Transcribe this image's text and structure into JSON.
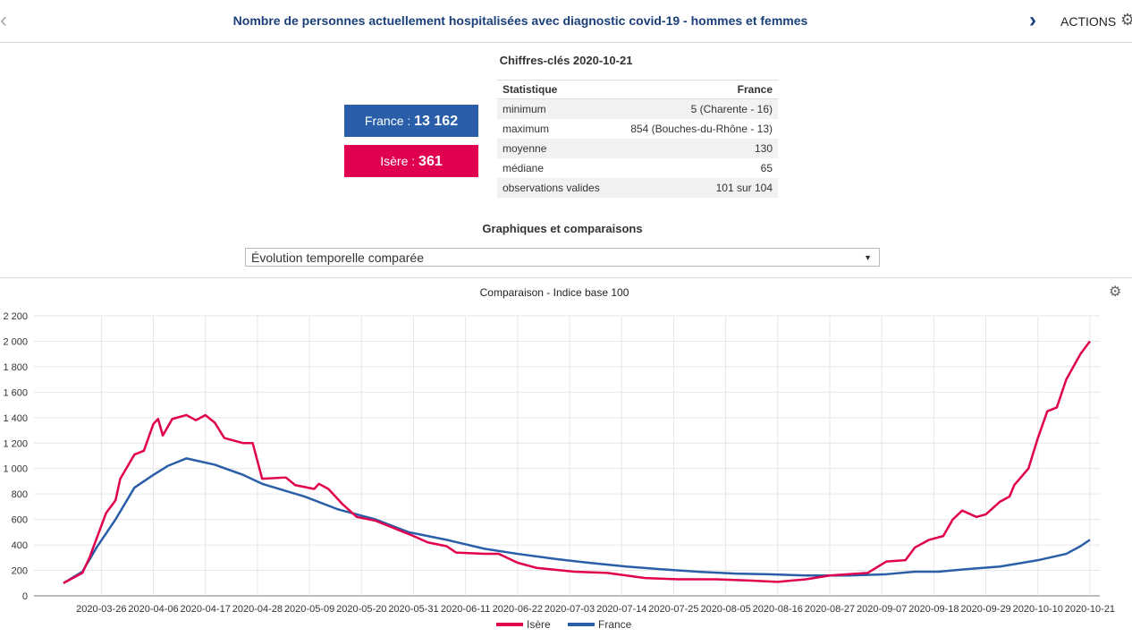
{
  "header": {
    "title": "Nombre de personnes actuellement hospitalisées avec diagnostic covid-19 - hommes et femmes",
    "prev_icon": "chevron-left",
    "next_icon": "chevron-right",
    "actions_label": "ACTIONS",
    "actions_icon": "gear"
  },
  "key_figures": {
    "title": "Chiffres-clés 2020-10-21",
    "france": {
      "label": "France : ",
      "value": "13 162",
      "color": "#2a5ea8"
    },
    "isere": {
      "label": "Isère : ",
      "value": "361",
      "color": "#e0004f"
    },
    "table": {
      "headers": [
        "Statistique",
        "France"
      ],
      "rows": [
        [
          "minimum",
          "5 (Charente - 16)"
        ],
        [
          "maximum",
          "854 (Bouches-du-Rhône - 13)"
        ],
        [
          "moyenne",
          "130"
        ],
        [
          "médiane",
          "65"
        ],
        [
          "observations valides",
          "101 sur 104"
        ]
      ]
    }
  },
  "graphs": {
    "title": "Graphiques et comparaisons",
    "select_value": "Évolution temporelle comparée"
  },
  "chart_data": {
    "type": "line",
    "title": "Comparaison - Indice base 100",
    "start_date": "2020-03-18",
    "ylim": [
      0,
      2200
    ],
    "yticks": [
      "0",
      "200",
      "400",
      "600",
      "800",
      "1 000",
      "1 200",
      "1 400",
      "1 600",
      "1 800",
      "2 000",
      "2 200"
    ],
    "xtick_labels": [
      "2020-03-26",
      "2020-04-06",
      "2020-04-17",
      "2020-04-28",
      "2020-05-09",
      "2020-05-20",
      "2020-05-31",
      "2020-06-11",
      "2020-06-22",
      "2020-07-03",
      "2020-07-14",
      "2020-07-25",
      "2020-08-05",
      "2020-08-16",
      "2020-08-27",
      "2020-09-07",
      "2020-09-18",
      "2020-09-29",
      "2020-10-10",
      "2020-10-21"
    ],
    "xtick_days": [
      8,
      19,
      30,
      41,
      52,
      63,
      74,
      85,
      96,
      107,
      118,
      129,
      140,
      151,
      162,
      173,
      184,
      195,
      206,
      217
    ],
    "x_unit": "days since start_date",
    "series": [
      {
        "name": "Isère",
        "color": "#e0004f",
        "points": [
          [
            0,
            100
          ],
          [
            4,
            180
          ],
          [
            5.5,
            300
          ],
          [
            7,
            450
          ],
          [
            9,
            650
          ],
          [
            11,
            750
          ],
          [
            12,
            920
          ],
          [
            15,
            1110
          ],
          [
            17,
            1140
          ],
          [
            19,
            1350
          ],
          [
            20,
            1390
          ],
          [
            21,
            1260
          ],
          [
            23,
            1390
          ],
          [
            26,
            1420
          ],
          [
            28,
            1380
          ],
          [
            30,
            1420
          ],
          [
            32,
            1360
          ],
          [
            34,
            1240
          ],
          [
            38,
            1200
          ],
          [
            40,
            1200
          ],
          [
            42,
            920
          ],
          [
            47,
            930
          ],
          [
            49,
            870
          ],
          [
            53,
            840
          ],
          [
            54,
            880
          ],
          [
            56,
            840
          ],
          [
            59,
            720
          ],
          [
            62,
            620
          ],
          [
            66,
            590
          ],
          [
            70,
            530
          ],
          [
            74,
            470
          ],
          [
            77,
            420
          ],
          [
            81,
            390
          ],
          [
            83,
            340
          ],
          [
            89,
            330
          ],
          [
            92,
            330
          ],
          [
            96,
            260
          ],
          [
            100,
            220
          ],
          [
            108,
            190
          ],
          [
            115,
            180
          ],
          [
            123,
            140
          ],
          [
            130,
            130
          ],
          [
            138,
            130
          ],
          [
            145,
            120
          ],
          [
            151,
            110
          ],
          [
            157,
            130
          ],
          [
            162,
            160
          ],
          [
            170,
            180
          ],
          [
            174,
            270
          ],
          [
            178,
            280
          ],
          [
            180,
            380
          ],
          [
            183,
            440
          ],
          [
            186,
            470
          ],
          [
            188,
            600
          ],
          [
            190,
            670
          ],
          [
            193,
            620
          ],
          [
            195,
            640
          ],
          [
            198,
            740
          ],
          [
            200,
            780
          ],
          [
            201,
            870
          ],
          [
            204,
            1000
          ],
          [
            206,
            1240
          ],
          [
            208,
            1450
          ],
          [
            210,
            1480
          ],
          [
            212,
            1700
          ],
          [
            215,
            1900
          ],
          [
            217,
            2000
          ]
        ]
      },
      {
        "name": "France",
        "color": "#2a5ea8",
        "points": [
          [
            0,
            100
          ],
          [
            4,
            190
          ],
          [
            7,
            380
          ],
          [
            11,
            600
          ],
          [
            15,
            850
          ],
          [
            19,
            950
          ],
          [
            22,
            1020
          ],
          [
            26,
            1080
          ],
          [
            32,
            1030
          ],
          [
            38,
            950
          ],
          [
            42,
            880
          ],
          [
            51,
            780
          ],
          [
            58,
            680
          ],
          [
            66,
            600
          ],
          [
            73,
            500
          ],
          [
            81,
            440
          ],
          [
            89,
            370
          ],
          [
            96,
            330
          ],
          [
            104,
            290
          ],
          [
            111,
            260
          ],
          [
            119,
            230
          ],
          [
            126,
            210
          ],
          [
            134,
            190
          ],
          [
            142,
            175
          ],
          [
            149,
            170
          ],
          [
            157,
            160
          ],
          [
            166,
            160
          ],
          [
            174,
            170
          ],
          [
            180,
            190
          ],
          [
            185,
            190
          ],
          [
            191,
            210
          ],
          [
            198,
            230
          ],
          [
            206,
            280
          ],
          [
            212,
            330
          ],
          [
            215,
            390
          ],
          [
            217,
            440
          ]
        ]
      }
    ],
    "legend": "bottom-center",
    "grid": true
  }
}
